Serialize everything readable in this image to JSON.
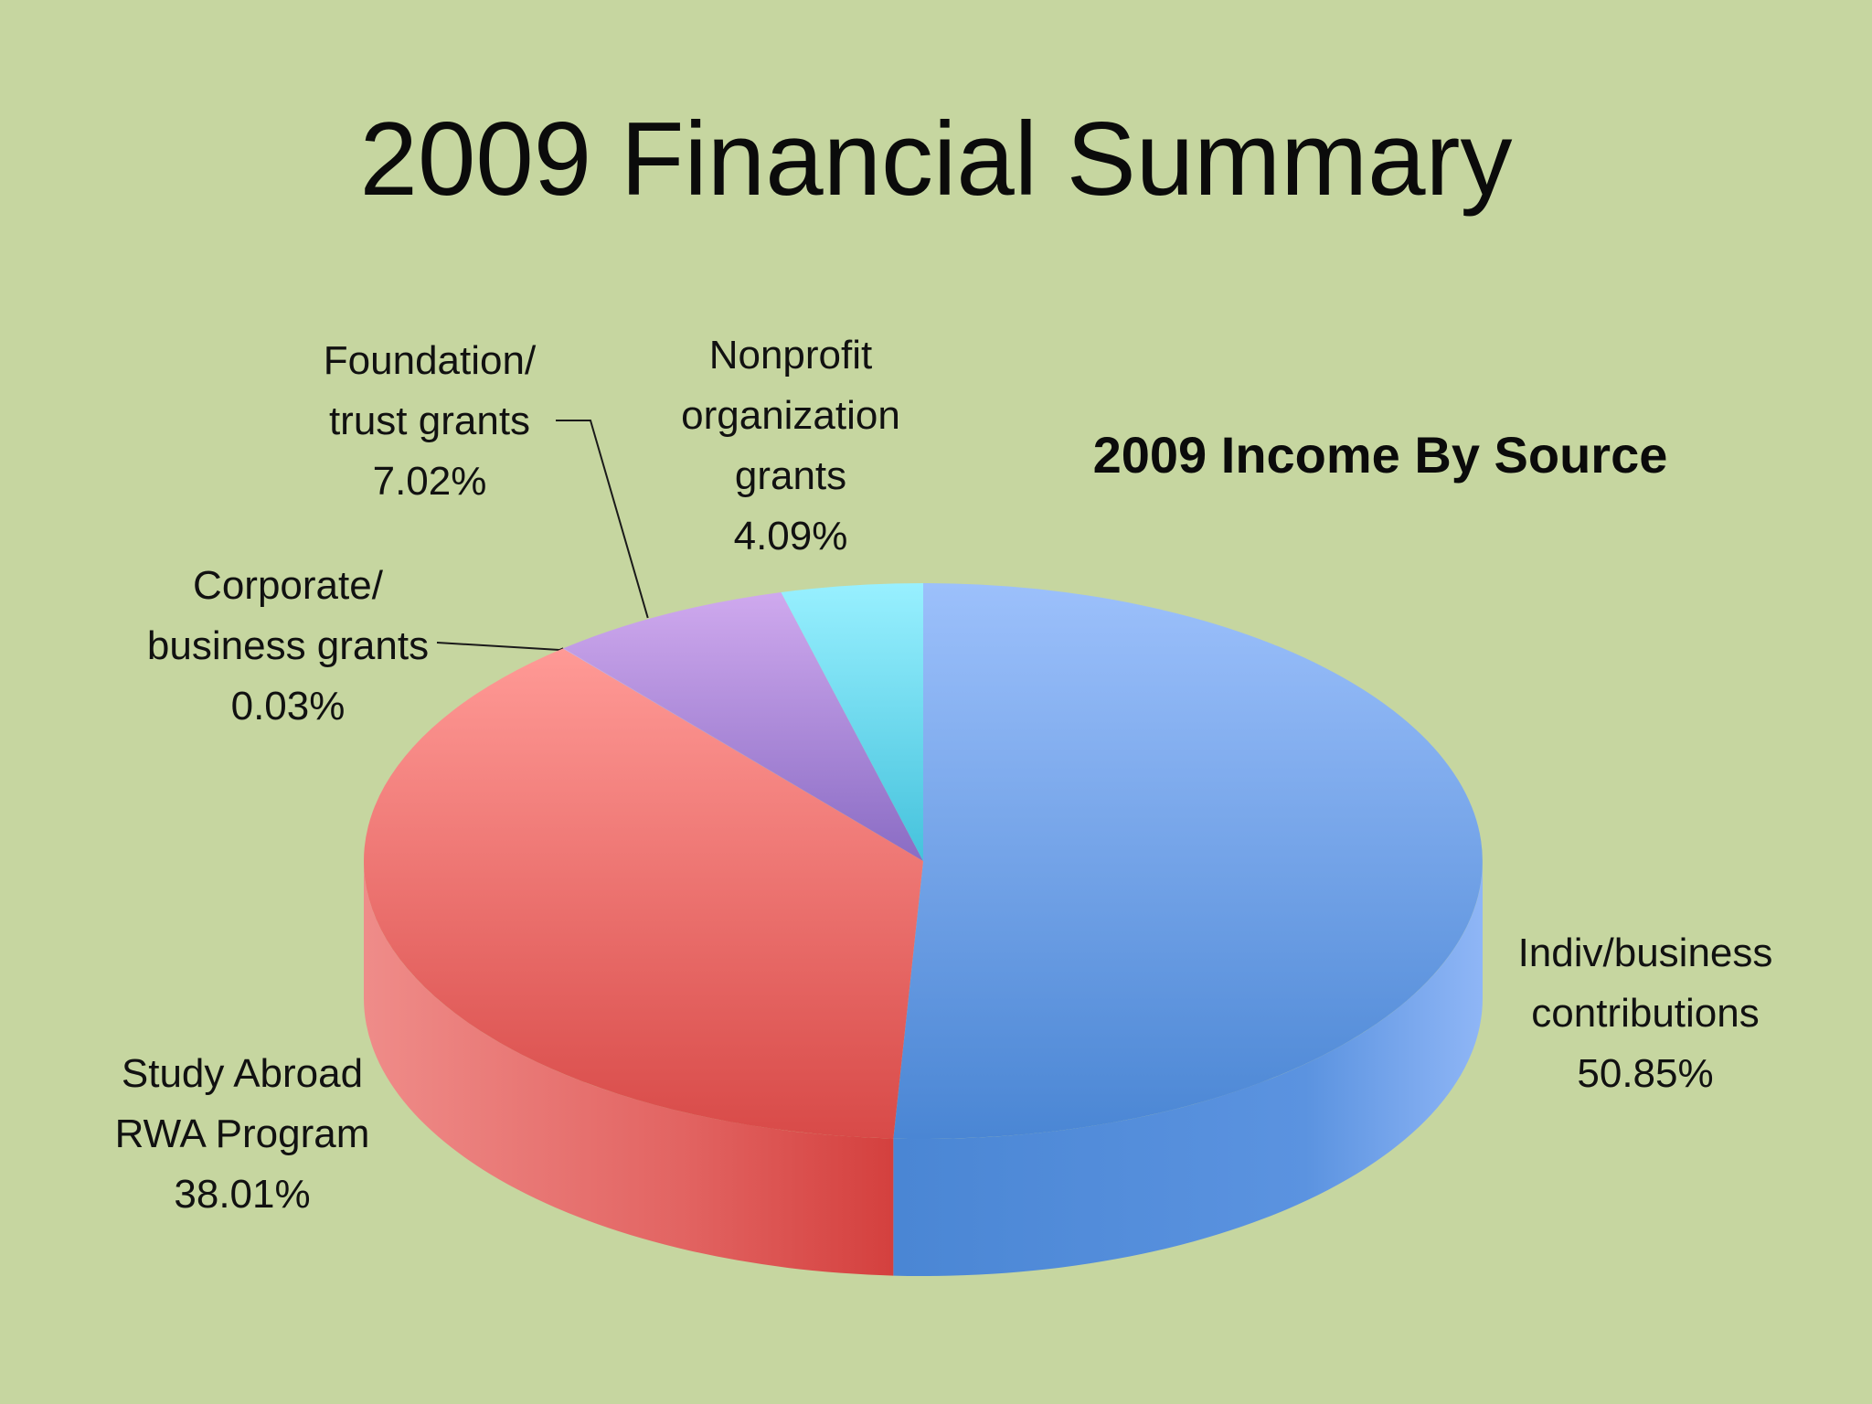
{
  "slide": {
    "title": "2009 Financial Summary"
  },
  "chart_data": {
    "type": "pie",
    "title": "2009 Income By Source",
    "three_d": true,
    "slices": [
      {
        "name": "Indiv/business contributions",
        "label_lines": [
          "Indiv/business",
          "contributions"
        ],
        "pct_label": "50.85%",
        "value": 50.85,
        "color": "#6b9ae6"
      },
      {
        "name": "Study Abroad RWA Program",
        "label_lines": [
          "Study Abroad",
          "RWA Program"
        ],
        "pct_label": "38.01%",
        "value": 38.01,
        "color": "#e46a6a"
      },
      {
        "name": "Corporate/ business grants",
        "label_lines": [
          "Corporate/",
          "business grants"
        ],
        "pct_label": "0.03%",
        "value": 0.03,
        "color": "#b58ad6"
      },
      {
        "name": "Foundation/ trust grants",
        "label_lines": [
          "Foundation/",
          "trust grants"
        ],
        "pct_label": "7.02%",
        "value": 7.02,
        "color": "#a98ad8"
      },
      {
        "name": "Nonprofit organization grants",
        "label_lines": [
          "Nonprofit",
          "organization",
          "grants"
        ],
        "pct_label": "4.09%",
        "value": 4.09,
        "color": "#6fdcec"
      }
    ]
  }
}
